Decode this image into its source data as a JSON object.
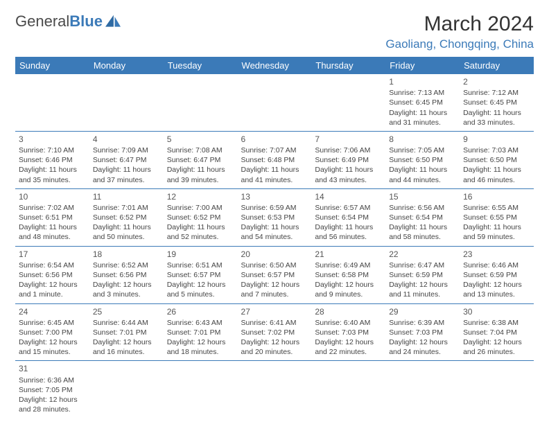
{
  "brand": {
    "part1": "General",
    "part2": "Blue"
  },
  "title": "March 2024",
  "location": "Gaoliang, Chongqing, China",
  "colors": {
    "header_bg": "#3b7ab8",
    "header_text": "#ffffff",
    "border": "#3b7ab8",
    "text": "#444444",
    "title_text": "#333333",
    "location_text": "#3b7ab8"
  },
  "fonts": {
    "base_family": "Arial",
    "title_size_pt": 22,
    "location_size_pt": 13,
    "header_size_pt": 10,
    "cell_size_pt": 8
  },
  "day_headers": [
    "Sunday",
    "Monday",
    "Tuesday",
    "Wednesday",
    "Thursday",
    "Friday",
    "Saturday"
  ],
  "weeks": [
    [
      null,
      null,
      null,
      null,
      null,
      {
        "d": "1",
        "sr": "7:13 AM",
        "ss": "6:45 PM",
        "dl": "11 hours and 31 minutes."
      },
      {
        "d": "2",
        "sr": "7:12 AM",
        "ss": "6:45 PM",
        "dl": "11 hours and 33 minutes."
      }
    ],
    [
      {
        "d": "3",
        "sr": "7:10 AM",
        "ss": "6:46 PM",
        "dl": "11 hours and 35 minutes."
      },
      {
        "d": "4",
        "sr": "7:09 AM",
        "ss": "6:47 PM",
        "dl": "11 hours and 37 minutes."
      },
      {
        "d": "5",
        "sr": "7:08 AM",
        "ss": "6:47 PM",
        "dl": "11 hours and 39 minutes."
      },
      {
        "d": "6",
        "sr": "7:07 AM",
        "ss": "6:48 PM",
        "dl": "11 hours and 41 minutes."
      },
      {
        "d": "7",
        "sr": "7:06 AM",
        "ss": "6:49 PM",
        "dl": "11 hours and 43 minutes."
      },
      {
        "d": "8",
        "sr": "7:05 AM",
        "ss": "6:50 PM",
        "dl": "11 hours and 44 minutes."
      },
      {
        "d": "9",
        "sr": "7:03 AM",
        "ss": "6:50 PM",
        "dl": "11 hours and 46 minutes."
      }
    ],
    [
      {
        "d": "10",
        "sr": "7:02 AM",
        "ss": "6:51 PM",
        "dl": "11 hours and 48 minutes."
      },
      {
        "d": "11",
        "sr": "7:01 AM",
        "ss": "6:52 PM",
        "dl": "11 hours and 50 minutes."
      },
      {
        "d": "12",
        "sr": "7:00 AM",
        "ss": "6:52 PM",
        "dl": "11 hours and 52 minutes."
      },
      {
        "d": "13",
        "sr": "6:59 AM",
        "ss": "6:53 PM",
        "dl": "11 hours and 54 minutes."
      },
      {
        "d": "14",
        "sr": "6:57 AM",
        "ss": "6:54 PM",
        "dl": "11 hours and 56 minutes."
      },
      {
        "d": "15",
        "sr": "6:56 AM",
        "ss": "6:54 PM",
        "dl": "11 hours and 58 minutes."
      },
      {
        "d": "16",
        "sr": "6:55 AM",
        "ss": "6:55 PM",
        "dl": "11 hours and 59 minutes."
      }
    ],
    [
      {
        "d": "17",
        "sr": "6:54 AM",
        "ss": "6:56 PM",
        "dl": "12 hours and 1 minute."
      },
      {
        "d": "18",
        "sr": "6:52 AM",
        "ss": "6:56 PM",
        "dl": "12 hours and 3 minutes."
      },
      {
        "d": "19",
        "sr": "6:51 AM",
        "ss": "6:57 PM",
        "dl": "12 hours and 5 minutes."
      },
      {
        "d": "20",
        "sr": "6:50 AM",
        "ss": "6:57 PM",
        "dl": "12 hours and 7 minutes."
      },
      {
        "d": "21",
        "sr": "6:49 AM",
        "ss": "6:58 PM",
        "dl": "12 hours and 9 minutes."
      },
      {
        "d": "22",
        "sr": "6:47 AM",
        "ss": "6:59 PM",
        "dl": "12 hours and 11 minutes."
      },
      {
        "d": "23",
        "sr": "6:46 AM",
        "ss": "6:59 PM",
        "dl": "12 hours and 13 minutes."
      }
    ],
    [
      {
        "d": "24",
        "sr": "6:45 AM",
        "ss": "7:00 PM",
        "dl": "12 hours and 15 minutes."
      },
      {
        "d": "25",
        "sr": "6:44 AM",
        "ss": "7:01 PM",
        "dl": "12 hours and 16 minutes."
      },
      {
        "d": "26",
        "sr": "6:43 AM",
        "ss": "7:01 PM",
        "dl": "12 hours and 18 minutes."
      },
      {
        "d": "27",
        "sr": "6:41 AM",
        "ss": "7:02 PM",
        "dl": "12 hours and 20 minutes."
      },
      {
        "d": "28",
        "sr": "6:40 AM",
        "ss": "7:03 PM",
        "dl": "12 hours and 22 minutes."
      },
      {
        "d": "29",
        "sr": "6:39 AM",
        "ss": "7:03 PM",
        "dl": "12 hours and 24 minutes."
      },
      {
        "d": "30",
        "sr": "6:38 AM",
        "ss": "7:04 PM",
        "dl": "12 hours and 26 minutes."
      }
    ],
    [
      {
        "d": "31",
        "sr": "6:36 AM",
        "ss": "7:05 PM",
        "dl": "12 hours and 28 minutes."
      },
      null,
      null,
      null,
      null,
      null,
      null
    ]
  ],
  "labels": {
    "sunrise": "Sunrise: ",
    "sunset": "Sunset: ",
    "daylight": "Daylight: "
  }
}
